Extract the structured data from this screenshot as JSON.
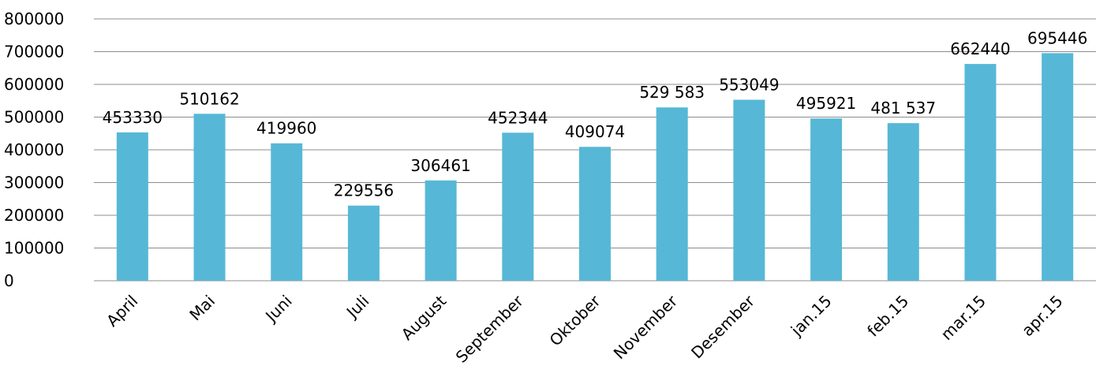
{
  "chart_data": {
    "type": "bar",
    "title": "",
    "xlabel": "",
    "ylabel": "",
    "ylim": [
      0,
      800000
    ],
    "yticks": [
      0,
      100000,
      200000,
      300000,
      400000,
      500000,
      600000,
      700000,
      800000
    ],
    "ytick_labels": [
      "0",
      "100000",
      "200000",
      "300000",
      "400000",
      "500000",
      "600000",
      "700000",
      "800000"
    ],
    "grid": true,
    "legend": "none",
    "bar_color": "#56b8d6",
    "categories": [
      "April",
      "Mai",
      "Juni",
      "Juli",
      "August",
      "September",
      "Oktober",
      "November",
      "Desember",
      "jan.15",
      "feb.15",
      "mar.15",
      "apr.15"
    ],
    "values": [
      453330,
      510162,
      419960,
      229556,
      306461,
      452344,
      409074,
      529583,
      553049,
      495921,
      481537,
      662440,
      695446
    ],
    "data_labels": [
      "453330",
      "510162",
      "419960",
      "229556",
      "306461",
      "452344",
      "409074",
      "529 583",
      "553049",
      "495921",
      "481 537",
      "662440",
      "695446"
    ]
  }
}
